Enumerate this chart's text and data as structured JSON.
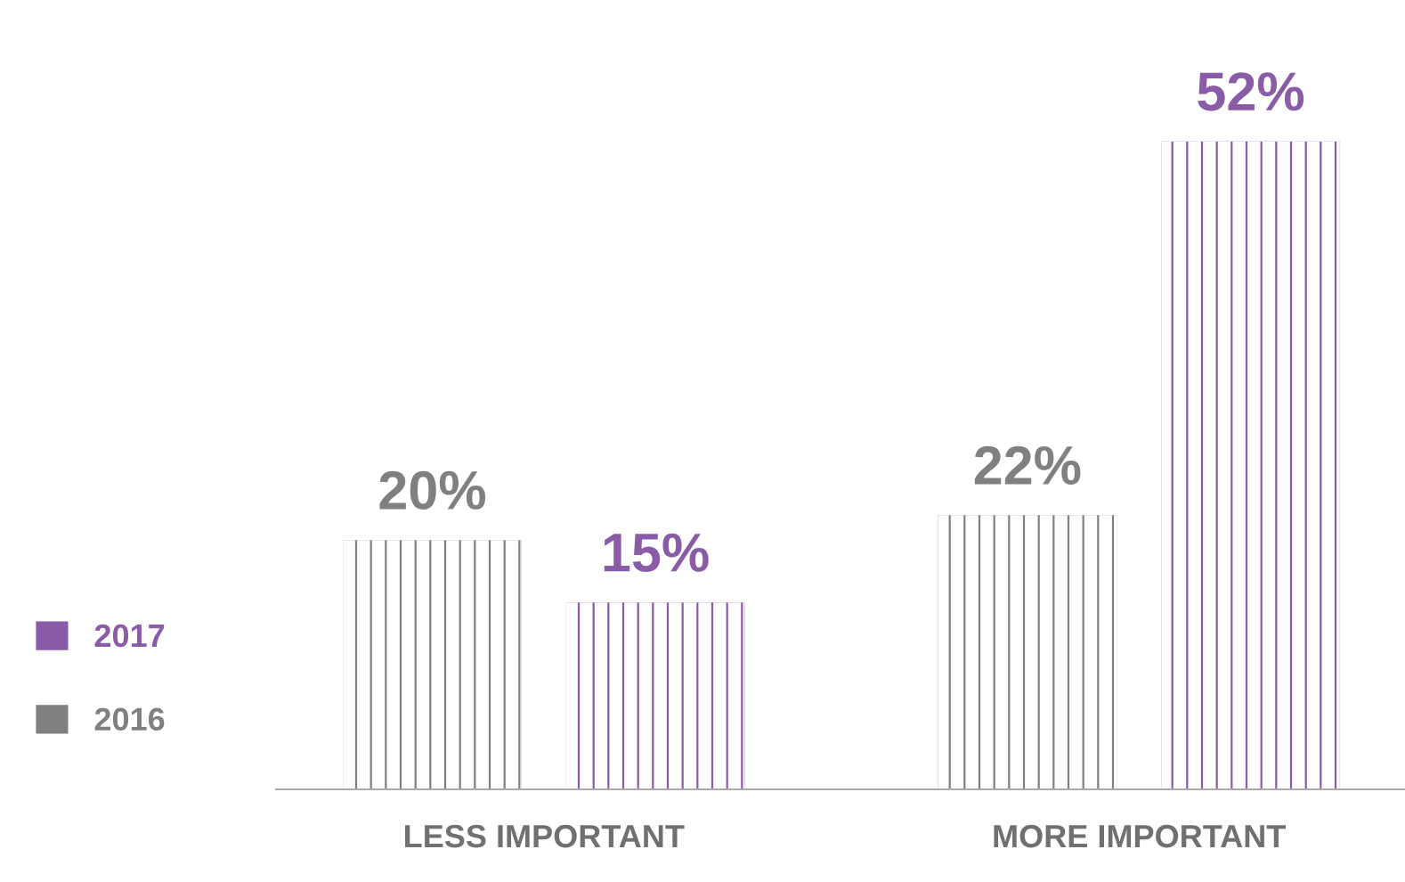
{
  "chart_data": {
    "type": "bar",
    "categories": [
      "LESS IMPORTANT",
      "MORE IMPORTANT"
    ],
    "series": [
      {
        "name": "2016",
        "color": "#808080",
        "values": [
          20,
          22
        ],
        "value_labels": [
          "20%",
          "22%"
        ]
      },
      {
        "name": "2017",
        "color": "#8a5ca8",
        "values": [
          15,
          52
        ],
        "value_labels": [
          "15%",
          "52%"
        ]
      }
    ],
    "legend": "left",
    "grid": false
  }
}
